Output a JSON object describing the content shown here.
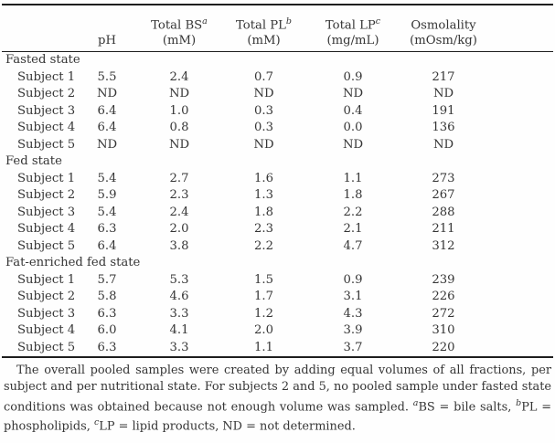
{
  "page": {
    "background": "#fefefe",
    "text_color": "#353535",
    "rule_color": "#1e1e1e"
  },
  "table": {
    "header": [
      {
        "line1": "",
        "sup": "",
        "line2": ""
      },
      {
        "line1": "",
        "sup": "",
        "line2": "pH"
      },
      {
        "line1": "Total BS",
        "sup": "a",
        "line2": "(mM)"
      },
      {
        "line1": "Total PL",
        "sup": "b",
        "line2": "(mM)"
      },
      {
        "line1": "Total LP",
        "sup": "c",
        "line2": "(mg/mL)"
      },
      {
        "line1": "Osmolality",
        "sup": "",
        "line2": "(mOsm/kg)"
      }
    ],
    "sections": [
      {
        "label": "Fasted state",
        "rows": [
          {
            "label": "Subject 1",
            "values": [
              "5.5",
              "2.4",
              "0.7",
              "0.9",
              "217"
            ]
          },
          {
            "label": "Subject 2",
            "values": [
              "ND",
              "ND",
              "ND",
              "ND",
              "ND"
            ]
          },
          {
            "label": "Subject 3",
            "values": [
              "6.4",
              "1.0",
              "0.3",
              "0.4",
              "191"
            ]
          },
          {
            "label": "Subject 4",
            "values": [
              "6.4",
              "0.8",
              "0.3",
              "0.0",
              "136"
            ]
          },
          {
            "label": "Subject 5",
            "values": [
              "ND",
              "ND",
              "ND",
              "ND",
              "ND"
            ]
          }
        ]
      },
      {
        "label": "Fed state",
        "rows": [
          {
            "label": "Subject 1",
            "values": [
              "5.4",
              "2.7",
              "1.6",
              "1.1",
              "273"
            ]
          },
          {
            "label": "Subject 2",
            "values": [
              "5.9",
              "2.3",
              "1.3",
              "1.8",
              "267"
            ]
          },
          {
            "label": "Subject 3",
            "values": [
              "5.4",
              "2.4",
              "1.8",
              "2.2",
              "288"
            ]
          },
          {
            "label": "Subject 4",
            "values": [
              "6.3",
              "2.0",
              "2.3",
              "2.1",
              "211"
            ]
          },
          {
            "label": "Subject 5",
            "values": [
              "6.4",
              "3.8",
              "2.2",
              "4.7",
              "312"
            ]
          }
        ]
      },
      {
        "label": "Fat-enriched fed state",
        "rows": [
          {
            "label": "Subject 1",
            "values": [
              "5.7",
              "5.3",
              "1.5",
              "0.9",
              "239"
            ]
          },
          {
            "label": "Subject 2",
            "values": [
              "5.8",
              "4.6",
              "1.7",
              "3.1",
              "226"
            ]
          },
          {
            "label": "Subject 3",
            "values": [
              "6.3",
              "3.3",
              "1.2",
              "4.3",
              "272"
            ]
          },
          {
            "label": "Subject 4",
            "values": [
              "6.0",
              "4.1",
              "2.0",
              "3.9",
              "310"
            ]
          },
          {
            "label": "Subject 5",
            "values": [
              "6.3",
              "3.3",
              "1.1",
              "3.7",
              "220"
            ]
          }
        ]
      }
    ]
  },
  "footnote": {
    "segments": [
      {
        "text": "The overall pooled samples were created by adding equal volumes of all fractions, per subject and per nutritional state. For subjects 2 and 5, no pooled sample under fasted state conditions was obtained because not enough volume was sampled. "
      },
      {
        "sup": "a"
      },
      {
        "text": "BS = bile salts, "
      },
      {
        "sup": "b"
      },
      {
        "text": "PL = phospholipids, "
      },
      {
        "sup": "c"
      },
      {
        "text": "LP = lipid products, ND = not determined."
      }
    ]
  }
}
